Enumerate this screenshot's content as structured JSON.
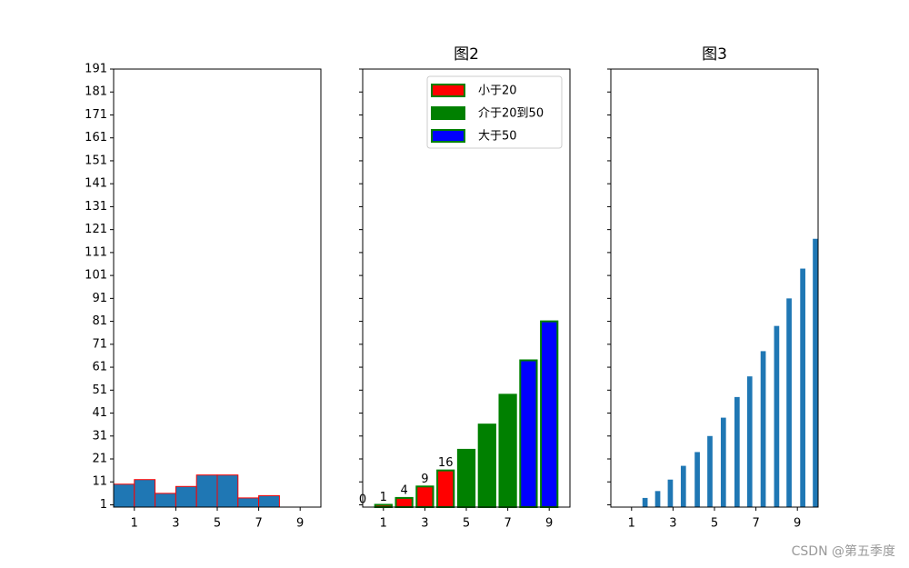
{
  "chart_data": [
    {
      "type": "histogram",
      "bins": [
        0,
        1,
        2,
        3,
        4,
        5,
        6,
        7,
        8
      ],
      "values": [
        10,
        12,
        6,
        9,
        14,
        14,
        4,
        5
      ],
      "color": "#1f77b4",
      "edgecolor": "red",
      "xlim": [
        0,
        10
      ],
      "xticks": [
        1,
        3,
        5,
        7,
        9
      ],
      "ylim": [
        0,
        191
      ],
      "yticks": [
        1,
        11,
        21,
        31,
        41,
        51,
        61,
        71,
        81,
        91,
        101,
        111,
        121,
        131,
        141,
        151,
        161,
        171,
        181,
        191
      ]
    },
    {
      "type": "bar",
      "title": "图2",
      "x": [
        0,
        1,
        2,
        3,
        4,
        5,
        6,
        7,
        8,
        9
      ],
      "values": [
        0,
        1,
        4,
        9,
        16,
        25,
        36,
        49,
        64,
        81
      ],
      "value_labels": [
        "0",
        "1",
        "4",
        "9",
        "16",
        null,
        null,
        null,
        null,
        null
      ],
      "colors": [
        "red",
        "red",
        "red",
        "red",
        "red",
        "green",
        "green",
        "green",
        "blue",
        "blue"
      ],
      "edgecolor": "green",
      "width": 0.8,
      "legend": [
        {
          "name": "小于20",
          "color": "red"
        },
        {
          "name": "介于20到50",
          "color": "green"
        },
        {
          "name": "大于50",
          "color": "blue"
        }
      ],
      "legend_position": "upper right",
      "xlim": [
        0,
        10
      ],
      "xticks": [
        1,
        3,
        5,
        7,
        9
      ]
    },
    {
      "type": "bar",
      "title": "图3",
      "x": [
        1.65,
        2.26,
        2.87,
        3.5,
        4.17,
        4.78,
        5.43,
        6.09,
        6.7,
        7.35,
        8,
        8.6,
        9.26,
        9.87
      ],
      "values": [
        4,
        7,
        12,
        18,
        24,
        31,
        39,
        48,
        57,
        68,
        79,
        91,
        104,
        117
      ],
      "color": "#1f77b4",
      "width": 0.25,
      "xlim": [
        0,
        10
      ],
      "xticks": [
        1,
        3,
        5,
        7,
        9
      ]
    }
  ],
  "watermark": "CSDN @第五季度"
}
